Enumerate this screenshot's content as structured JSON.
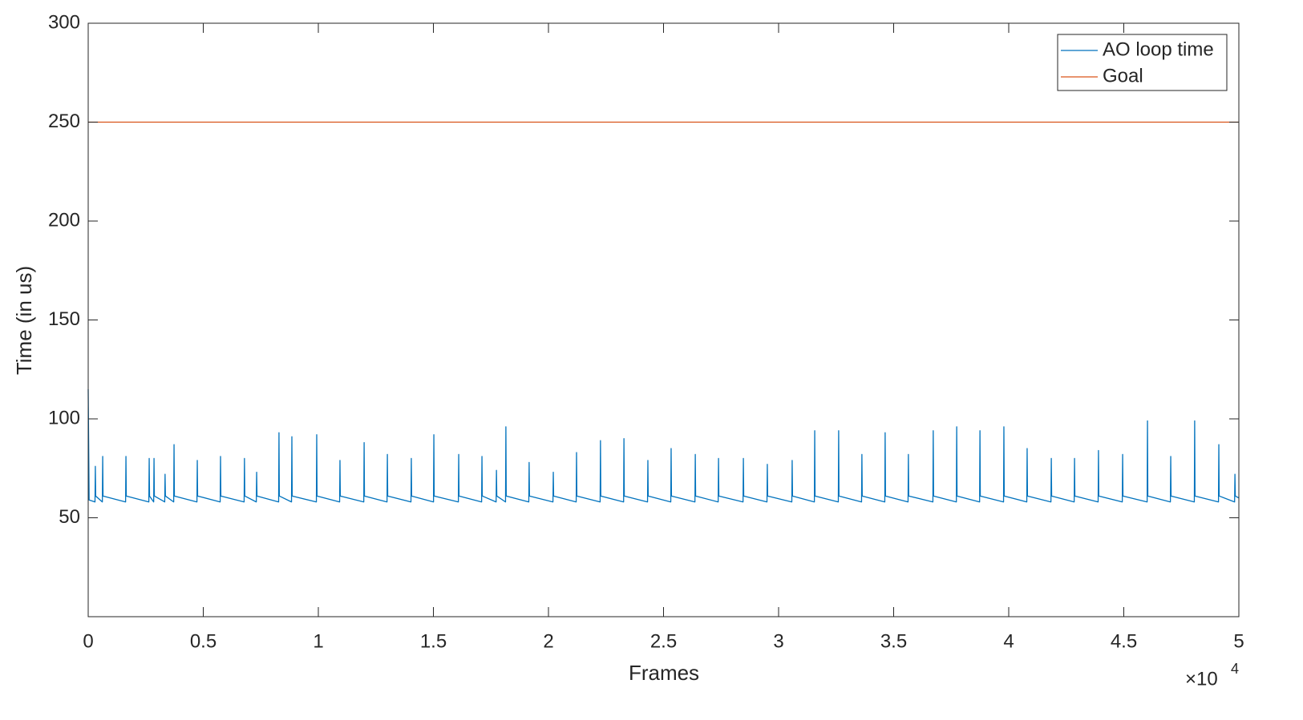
{
  "chart_data": {
    "type": "line",
    "xlabel": "Frames",
    "ylabel": "Time (in us)",
    "x_multiplier": "×10",
    "x_multiplier_exponent": "4",
    "xlim": [
      0,
      50000
    ],
    "xticks": [
      0,
      {
        "value": 5000,
        "label": "0.5"
      },
      {
        "value": 10000,
        "label": "1"
      },
      {
        "value": 15000,
        "label": "1.5"
      },
      {
        "value": 20000,
        "label": "2"
      },
      {
        "value": 25000,
        "label": "2.5"
      },
      {
        "value": 30000,
        "label": "3"
      },
      {
        "value": 35000,
        "label": "3.5"
      },
      {
        "value": 40000,
        "label": "4"
      },
      {
        "value": 45000,
        "label": "4.5"
      },
      {
        "value": 50000,
        "label": "5"
      }
    ],
    "ylim": [
      0,
      300
    ],
    "yticks": [
      50,
      100,
      150,
      200,
      250,
      300
    ],
    "legend": "upper right",
    "grid": false,
    "series": [
      {
        "name": "AO loop time",
        "color": "#0072bd",
        "x": [
          0,
          40,
          295,
          310,
          325,
          615,
          630,
          645,
          1625,
          1640,
          1655,
          2635,
          2650,
          2665,
          2845,
          2860,
          2875,
          3325,
          3340,
          3355,
          3715,
          3730,
          3745,
          4725,
          4740,
          4755,
          5735,
          5750,
          5765,
          6775,
          6790,
          6805,
          7305,
          7320,
          7335,
          8275,
          8290,
          8305,
          8835,
          8850,
          8865,
          9915,
          9930,
          9945,
          10925,
          10940,
          10955,
          11975,
          11990,
          12005,
          12985,
          13000,
          13015,
          14025,
          14040,
          14055,
          15005,
          15020,
          15035,
          16085,
          16100,
          16115,
          17095,
          17110,
          17125,
          17725,
          17740,
          17755,
          18135,
          18150,
          18165,
          19145,
          19160,
          19175,
          20195,
          20210,
          20225,
          21205,
          21220,
          21235,
          22245,
          22260,
          22275,
          23265,
          23280,
          23295,
          24305,
          24320,
          24335,
          25315,
          25330,
          25345,
          26365,
          26380,
          26395,
          27375,
          27390,
          27405,
          28455,
          28470,
          28485,
          29495,
          29510,
          29525,
          30575,
          30590,
          30605,
          31555,
          31570,
          31585,
          32595,
          32610,
          32625,
          33605,
          33620,
          33635,
          34615,
          34630,
          34645,
          35625,
          35640,
          35655,
          36705,
          36720,
          36735,
          37725,
          37740,
          37755,
          38735,
          38750,
          38765,
          39775,
          39790,
          39805,
          40785,
          40800,
          40815,
          41835,
          41850,
          41865,
          42845,
          42860,
          42875,
          43885,
          43900,
          43915,
          44935,
          44950,
          44965,
          46015,
          46030,
          46045,
          47025,
          47040,
          47055,
          48065,
          48080,
          48095,
          49115,
          49130,
          49145,
          49815,
          49830,
          49845,
          50000
        ],
        "values": [
          115,
          59,
          58,
          76,
          61,
          58,
          81,
          61,
          58,
          81,
          61,
          58,
          80,
          61,
          58,
          80,
          61,
          58,
          72,
          61,
          58,
          87,
          61,
          58,
          79,
          61,
          58,
          81,
          61,
          58,
          80,
          61,
          58,
          73,
          61,
          58,
          93,
          61,
          58,
          91,
          61,
          58,
          92,
          61,
          58,
          79,
          61,
          58,
          88,
          61,
          58,
          82,
          61,
          58,
          80,
          61,
          58,
          92,
          61,
          58,
          82,
          61,
          58,
          81,
          61,
          58,
          74,
          61,
          58,
          96,
          61,
          58,
          78,
          61,
          58,
          73,
          61,
          58,
          83,
          61,
          58,
          89,
          61,
          58,
          90,
          61,
          58,
          79,
          61,
          58,
          85,
          61,
          58,
          82,
          61,
          58,
          80,
          61,
          58,
          80,
          61,
          58,
          77,
          61,
          58,
          79,
          61,
          58,
          94,
          61,
          58,
          94,
          61,
          58,
          82,
          61,
          58,
          93,
          61,
          58,
          82,
          61,
          58,
          94,
          61,
          58,
          96,
          61,
          58,
          94,
          61,
          58,
          96,
          61,
          58,
          85,
          61,
          58,
          80,
          61,
          58,
          80,
          61,
          58,
          84,
          61,
          58,
          82,
          61,
          58,
          99,
          61,
          58,
          81,
          61,
          58,
          99,
          61,
          58,
          87,
          61,
          58,
          72,
          61,
          60
        ]
      },
      {
        "name": "Goal",
        "color": "#d95319",
        "x": [
          0,
          50000
        ],
        "values": [
          250,
          250
        ]
      }
    ]
  }
}
